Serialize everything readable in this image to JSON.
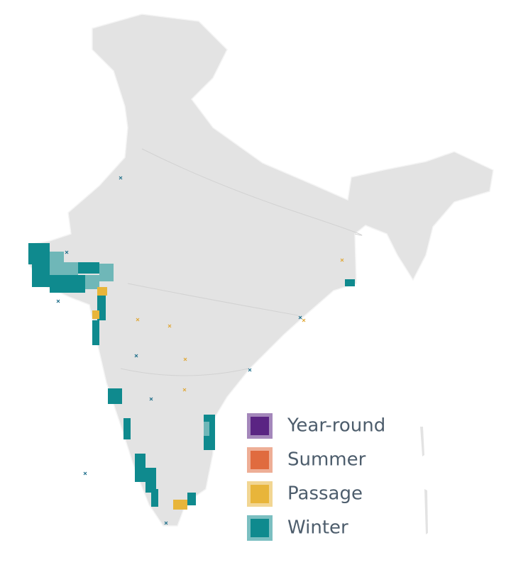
{
  "legend": {
    "items": [
      {
        "label": "Year-round",
        "color": "#5a2483"
      },
      {
        "label": "Summer",
        "color": "#e06b3f"
      },
      {
        "label": "Passage",
        "color": "#e8b53a"
      },
      {
        "label": "Winter",
        "color": "#0f8a8e"
      }
    ]
  }
}
